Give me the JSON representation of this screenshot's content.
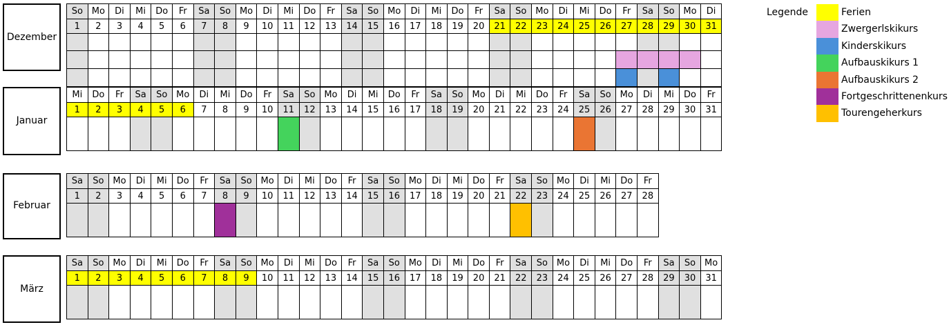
{
  "colors": {
    "weekend": "#e0e0e0",
    "holiday": "#ffff00",
    "zwergerl": "#e6a6e0",
    "kinder": "#4a90d9",
    "aufbau1": "#44d35c",
    "aufbau2": "#ea7533",
    "fortgeschritten": "#a0309a",
    "touren": "#ffc000"
  },
  "legend": {
    "title": "Legende",
    "items": [
      {
        "label": "Ferien",
        "color": "#ffff00"
      },
      {
        "label": "Zwergerlskikurs",
        "color": "#e6a6e0"
      },
      {
        "label": "Kinderskikurs",
        "color": "#4a90d9"
      },
      {
        "label": "Aufbauskikurs 1",
        "color": "#44d35c"
      },
      {
        "label": "Aufbauskikurs 2",
        "color": "#ea7533"
      },
      {
        "label": "Fortgeschrittenenkurs",
        "color": "#a0309a"
      },
      {
        "label": "Tourengeherkurs",
        "color": "#ffc000"
      }
    ]
  },
  "months": [
    {
      "name": "Dezember",
      "weekdays": [
        "So",
        "Mo",
        "Di",
        "Mi",
        "Do",
        "Fr",
        "Sa",
        "So",
        "Mo",
        "Di",
        "Mi",
        "Do",
        "Fr",
        "Sa",
        "So",
        "Mo",
        "Di",
        "Mi",
        "Do",
        "Fr",
        "Sa",
        "So",
        "Mo",
        "Di",
        "Mi",
        "Do",
        "Fr",
        "Sa",
        "So",
        "Mo",
        "Di"
      ],
      "days": [
        "1",
        "2",
        "3",
        "4",
        "5",
        "6",
        "7",
        "8",
        "9",
        "10",
        "11",
        "12",
        "13",
        "14",
        "15",
        "16",
        "17",
        "18",
        "19",
        "20",
        "21",
        "22",
        "23",
        "24",
        "25",
        "26",
        "27",
        "28",
        "29",
        "30",
        "31"
      ],
      "holidays": [
        21,
        22,
        23,
        24,
        25,
        26,
        27,
        28,
        29,
        30,
        31
      ],
      "course_rows": [
        {},
        {
          "27": "zwergerl",
          "28": "zwergerl",
          "29": "zwergerl",
          "30": "zwergerl"
        },
        {
          "27": "kinder",
          "29": "kinder"
        }
      ]
    },
    {
      "name": "Januar",
      "weekdays": [
        "Mi",
        "Do",
        "Fr",
        "Sa",
        "So",
        "Mo",
        "Di",
        "Mi",
        "Do",
        "Fr",
        "Sa",
        "So",
        "Mo",
        "Di",
        "Mi",
        "Do",
        "Fr",
        "Sa",
        "So",
        "Mo",
        "Di",
        "Mi",
        "Do",
        "Fr",
        "Sa",
        "So",
        "Mo",
        "Di",
        "Mi",
        "Do",
        "Fr"
      ],
      "days": [
        "1",
        "2",
        "3",
        "4",
        "5",
        "6",
        "7",
        "8",
        "9",
        "10",
        "11",
        "12",
        "13",
        "14",
        "15",
        "16",
        "17",
        "18",
        "19",
        "20",
        "21",
        "22",
        "23",
        "24",
        "25",
        "26",
        "27",
        "28",
        "29",
        "30",
        "31"
      ],
      "holidays": [
        1,
        2,
        3,
        4,
        5,
        6
      ],
      "course_rows": [
        {
          "11": "aufbau1",
          "25": "aufbau2"
        }
      ]
    },
    {
      "name": "Februar",
      "weekdays": [
        "Sa",
        "So",
        "Mo",
        "Di",
        "Mi",
        "Do",
        "Fr",
        "Sa",
        "So",
        "Mo",
        "Di",
        "Mi",
        "Do",
        "Fr",
        "Sa",
        "So",
        "Mo",
        "Di",
        "Mi",
        "Do",
        "Fr",
        "Sa",
        "So",
        "Mo",
        "Di",
        "Mi",
        "Do",
        "Fr"
      ],
      "days": [
        "1",
        "2",
        "3",
        "4",
        "5",
        "6",
        "7",
        "8",
        "9",
        "10",
        "11",
        "12",
        "13",
        "14",
        "15",
        "16",
        "17",
        "18",
        "19",
        "20",
        "21",
        "22",
        "23",
        "24",
        "25",
        "26",
        "27",
        "28"
      ],
      "holidays": [],
      "course_rows": [
        {
          "8": "fortgeschritten",
          "22": "touren"
        }
      ]
    },
    {
      "name": "März",
      "weekdays": [
        "Sa",
        "So",
        "Mo",
        "Di",
        "Mi",
        "Do",
        "Fr",
        "Sa",
        "So",
        "Mo",
        "Di",
        "Mi",
        "Do",
        "Fr",
        "Sa",
        "So",
        "Mo",
        "Di",
        "Mi",
        "Do",
        "Fr",
        "Sa",
        "So",
        "Mo",
        "Di",
        "Mi",
        "Do",
        "Fr",
        "Sa",
        "So",
        "Mo"
      ],
      "days": [
        "1",
        "2",
        "3",
        "4",
        "5",
        "6",
        "7",
        "8",
        "9",
        "10",
        "11",
        "12",
        "13",
        "14",
        "15",
        "16",
        "17",
        "18",
        "19",
        "20",
        "21",
        "22",
        "23",
        "24",
        "25",
        "26",
        "27",
        "28",
        "29",
        "30",
        "31"
      ],
      "holidays": [
        1,
        2,
        3,
        4,
        5,
        6,
        7,
        8,
        9
      ],
      "course_rows": [
        {}
      ]
    }
  ]
}
